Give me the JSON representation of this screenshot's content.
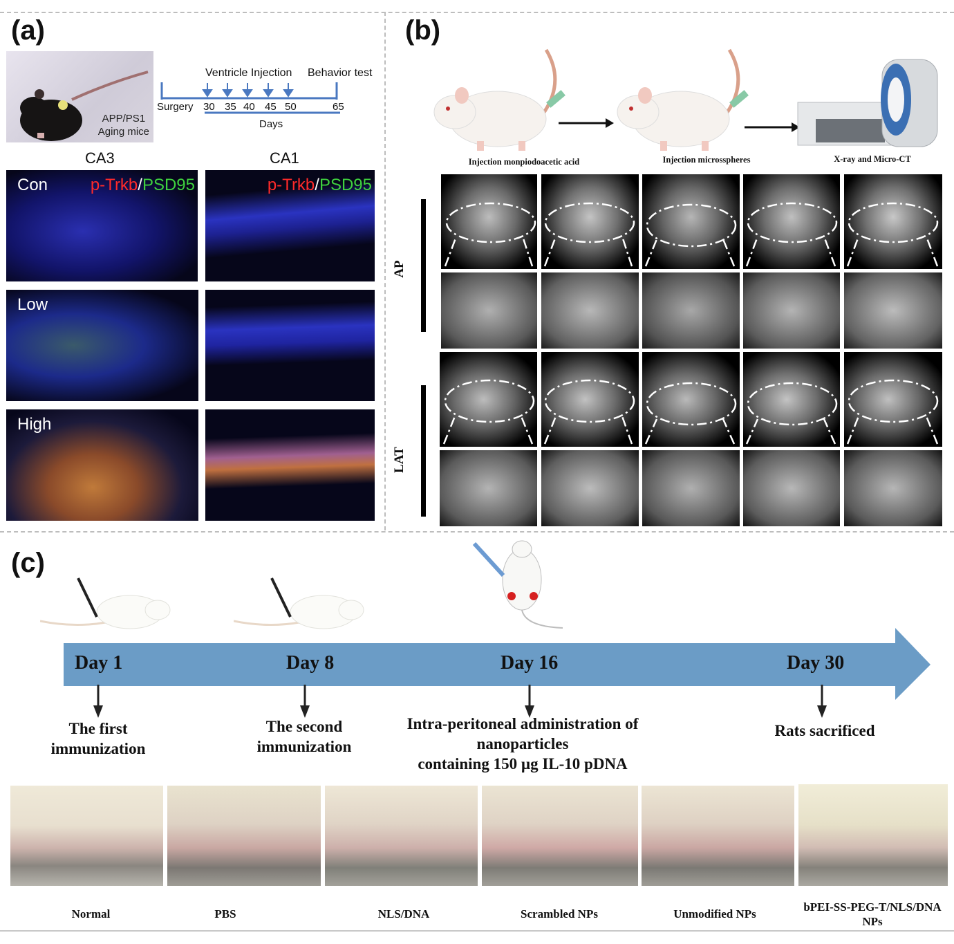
{
  "panels": {
    "a": "(a)",
    "b": "(b)",
    "c": "(c)"
  },
  "panel_a": {
    "mouse_label_line1": "APP/PS1",
    "mouse_label_line2": "Aging mice",
    "timeline": {
      "injection_label": "Ventricle Injection",
      "behavior_label": "Behavior test",
      "surgery_label": "Surgery",
      "ticks": [
        "30",
        "35",
        "40",
        "45",
        "50",
        "65"
      ],
      "days_label": "Days"
    },
    "columns": [
      "CA3",
      "CA1"
    ],
    "rows": [
      "Con",
      "Low",
      "High"
    ],
    "stain_red": "p-Trkb",
    "stain_sep": "/",
    "stain_green": "PSD95"
  },
  "panel_b": {
    "steps": [
      "Injection monpiodoacetic acid",
      "Injection microsspheres",
      "X-ray and Micro-CT"
    ],
    "row_labels": [
      "AP",
      "LAT"
    ]
  },
  "panel_c": {
    "days": [
      "Day 1",
      "Day 8",
      "Day 16",
      "Day 30"
    ],
    "events": {
      "e1_line1": "The first",
      "e1_line2": "immunization",
      "e2_line1": "The second",
      "e2_line2": "immunization",
      "e3_line1": "Intra-peritoneal administration of",
      "e3_line2": "nanoparticles",
      "e3_line3": "containing 150 µg IL-10 pDNA",
      "e4_line1": "Rats sacrificed"
    },
    "groups": [
      "Normal",
      "PBS",
      "NLS/DNA",
      "Scrambled NPs",
      "Unmodified NPs",
      "bPEI-SS-PEG-T/NLS/DNA NPs"
    ],
    "arrow_color": "#6b9cc6"
  }
}
